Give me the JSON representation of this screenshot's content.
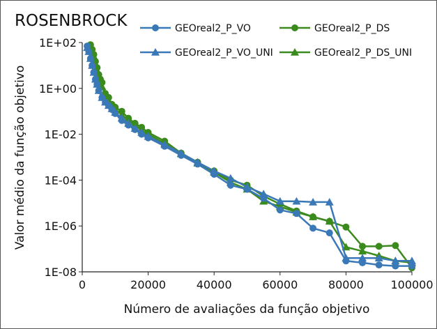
{
  "chart_data": {
    "type": "line",
    "title": "ROSENBROCK",
    "xlabel": "Número de avaliações da função objetivo",
    "ylabel": "Valor médio da função objetivo",
    "xlim": [
      0,
      100000
    ],
    "ylim": [
      1e-08,
      100
    ],
    "yscale": "log",
    "x_ticks": [
      0,
      20000,
      40000,
      60000,
      80000,
      100000
    ],
    "x_tick_labels": [
      "0",
      "20000",
      "40000",
      "60000",
      "80000",
      "100000"
    ],
    "y_ticks": [
      1e-08,
      1e-06,
      0.0001,
      0.01,
      1,
      100
    ],
    "y_tick_labels": [
      "1E-08",
      "1E-06",
      "1E-04",
      "1E-02",
      "1E+00",
      "1E+02"
    ],
    "grid": false,
    "legend_position": "top",
    "series": [
      {
        "name": "GEOreal2_P_VO",
        "color": "#3a78b8",
        "marker": "circle",
        "x": [
          1500,
          2000,
          2500,
          3000,
          3500,
          4000,
          4500,
          5000,
          6000,
          7000,
          8000,
          9000,
          10000,
          12000,
          14000,
          16000,
          18000,
          20000,
          25000,
          30000,
          35000,
          40000,
          45000,
          50000,
          55000,
          60000,
          65000,
          70000,
          75000,
          80000,
          85000,
          90000,
          95000,
          100000
        ],
        "y": [
          70,
          40,
          20,
          10,
          5,
          2.5,
          1.5,
          0.8,
          0.4,
          0.25,
          0.18,
          0.12,
          0.08,
          0.04,
          0.025,
          0.016,
          0.01,
          0.007,
          0.003,
          0.0012,
          0.0005,
          0.00018,
          6e-05,
          4e-05,
          1.6e-05,
          5e-06,
          3.5e-06,
          8e-07,
          5e-07,
          3e-08,
          2.5e-08,
          2e-08,
          1.8e-08,
          1.8e-08
        ]
      },
      {
        "name": "GEOreal2_P_DS",
        "color": "#3a8a1e",
        "marker": "circle",
        "x": [
          2000,
          2500,
          3000,
          3500,
          4000,
          4500,
          5000,
          5500,
          6000,
          7000,
          8000,
          9000,
          10000,
          12000,
          14000,
          16000,
          18000,
          20000,
          25000,
          30000,
          35000,
          40000,
          45000,
          50000,
          55000,
          60000,
          65000,
          70000,
          75000,
          80000,
          85000,
          90000,
          95000,
          100000
        ],
        "y": [
          70,
          80,
          50,
          30,
          15,
          8,
          4,
          2.5,
          1.8,
          0.6,
          0.4,
          0.2,
          0.15,
          0.1,
          0.05,
          0.03,
          0.02,
          0.012,
          0.005,
          0.0015,
          0.0006,
          0.00025,
          0.0001,
          6e-05,
          2e-05,
          9e-06,
          4.5e-06,
          2.5e-06,
          1.6e-06,
          9e-07,
          1.3e-07,
          1.3e-07,
          1.4e-07,
          1.5e-08
        ]
      },
      {
        "name": "GEOreal2_P_VO_UNI",
        "color": "#3a78b8",
        "marker": "triangle",
        "x": [
          1500,
          2000,
          2500,
          3000,
          3500,
          4000,
          4500,
          5000,
          6000,
          7000,
          8000,
          9000,
          10000,
          12000,
          14000,
          16000,
          18000,
          20000,
          25000,
          30000,
          35000,
          40000,
          45000,
          50000,
          55000,
          60000,
          65000,
          70000,
          75000,
          80000,
          85000,
          90000,
          95000,
          100000
        ],
        "y": [
          60,
          40,
          20,
          10,
          5,
          2.5,
          1.5,
          0.8,
          0.4,
          0.25,
          0.18,
          0.13,
          0.09,
          0.05,
          0.03,
          0.018,
          0.012,
          0.008,
          0.0035,
          0.0015,
          0.0006,
          0.00025,
          0.00012,
          5e-05,
          2.5e-05,
          1.2e-05,
          1.2e-05,
          1.1e-05,
          1.1e-05,
          4e-08,
          4e-08,
          4e-08,
          3e-08,
          3e-08
        ]
      },
      {
        "name": "GEOreal2_P_DS_UNI",
        "color": "#3a8a1e",
        "marker": "triangle",
        "x": [
          2000,
          2500,
          3000,
          3500,
          4000,
          4500,
          5000,
          5500,
          6000,
          7000,
          8000,
          9000,
          10000,
          12000,
          14000,
          16000,
          18000,
          20000,
          25000,
          30000,
          35000,
          40000,
          45000,
          50000,
          55000,
          60000,
          65000,
          70000,
          75000,
          80000,
          85000,
          90000,
          95000,
          100000
        ],
        "y": [
          60,
          70,
          45,
          25,
          12,
          6,
          3.5,
          2,
          1.2,
          0.5,
          0.3,
          0.18,
          0.12,
          0.07,
          0.04,
          0.025,
          0.015,
          0.01,
          0.004,
          0.0014,
          0.00055,
          0.00022,
          8e-05,
          4e-05,
          1.2e-05,
          7e-06,
          4e-06,
          2.5e-06,
          1.6e-06,
          1.2e-07,
          8e-08,
          5e-08,
          3e-08,
          2.5e-08
        ]
      }
    ]
  }
}
